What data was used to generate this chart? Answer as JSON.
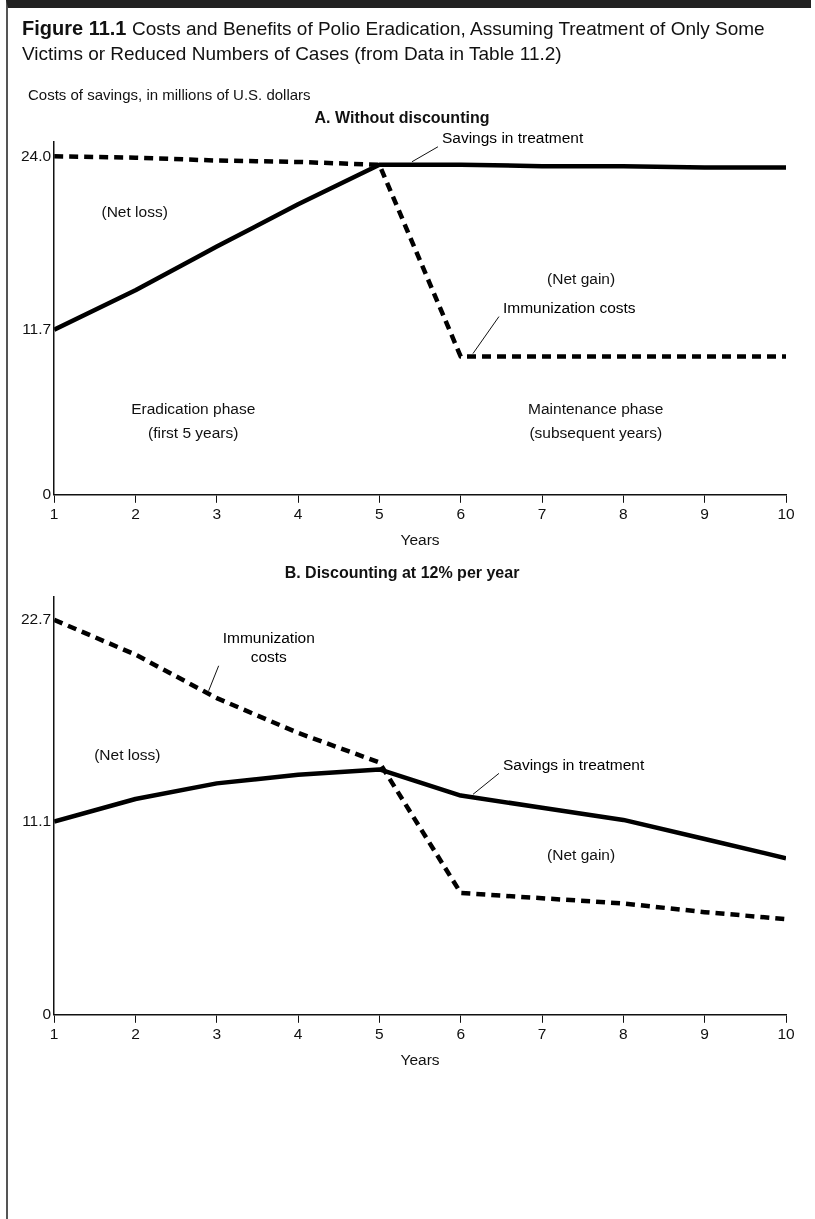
{
  "chart_data": [
    {
      "type": "line",
      "title": "Figure 11.1 Costs and Benefits of Polio Eradication, Assuming Treatment of Only Some Victims or Reduced Numbers of Cases (from Data in Table 11.2)",
      "ylabel": "Costs of  savings, in millions of U.S. dollars",
      "subtitle": "A. Without discounting",
      "xlabel": "Years",
      "x": [
        1,
        2,
        3,
        4,
        5,
        6,
        7,
        8,
        9,
        10
      ],
      "xlim": [
        1,
        10
      ],
      "xticks": [
        1,
        2,
        3,
        4,
        5,
        6,
        7,
        8,
        9,
        10
      ],
      "ylim": [
        0,
        25
      ],
      "yticks": [
        0,
        11.7,
        {
          "value": 24,
          "label": "24.0"
        }
      ],
      "marker": "none",
      "series": [
        {
          "name": "Savings in treatment",
          "color": "#000000",
          "line_style": "solid",
          "values": [
            11.7,
            14.5,
            17.6,
            20.6,
            23.4,
            23.4,
            23.3,
            23.3,
            23.2,
            23.2
          ]
        },
        {
          "name": "Immunization costs",
          "color": "#000000",
          "line_style": "dashed",
          "values": [
            24.0,
            23.9,
            23.7,
            23.6,
            23.4,
            9.8,
            9.8,
            9.8,
            9.8,
            9.8
          ]
        }
      ],
      "annotations": [
        "(Net loss)",
        "(Net gain)",
        "Eradication phase\n(first 5 years)",
        "Maintenance phase\n(subsequent years)"
      ]
    },
    {
      "type": "line",
      "title": "B. Discounting at 12% per year",
      "xlabel": "Years",
      "x": [
        1,
        2,
        3,
        4,
        5,
        6,
        7,
        8,
        9,
        10
      ],
      "xlim": [
        1,
        10
      ],
      "xticks": [
        1,
        2,
        3,
        4,
        5,
        6,
        7,
        8,
        9,
        10
      ],
      "ylim": [
        0,
        24
      ],
      "yticks": [
        0,
        11.1,
        22.7
      ],
      "marker": "none",
      "series": [
        {
          "name": "Savings in treatment",
          "color": "#000000",
          "line_style": "solid",
          "values": [
            11.1,
            12.4,
            13.3,
            13.8,
            14.1,
            12.6,
            11.9,
            11.2,
            10.1,
            9.0
          ]
        },
        {
          "name": "Immunization\ncosts",
          "color": "#000000",
          "line_style": "dashed",
          "values": [
            22.7,
            20.7,
            18.2,
            16.2,
            14.5,
            7.0,
            6.7,
            6.4,
            5.9,
            5.5
          ]
        }
      ],
      "annotations": [
        "(Net loss)",
        "(Net gain)"
      ]
    }
  ]
}
